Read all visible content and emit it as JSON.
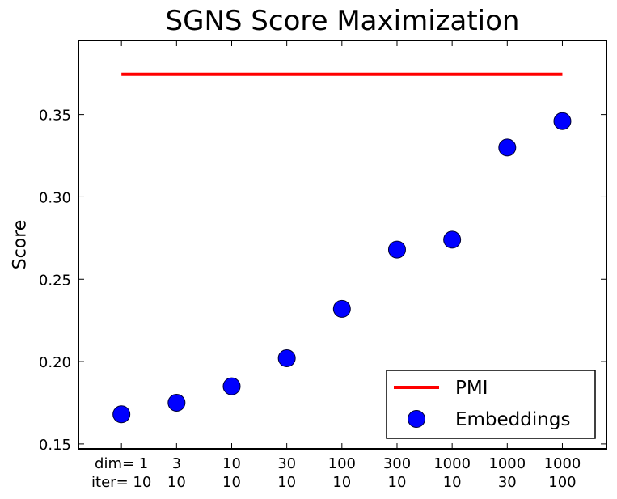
{
  "chart_data": {
    "type": "scatter",
    "title": "SGNS Score Maximization",
    "xlabel": "",
    "ylabel": "Score",
    "x_row_labels": [
      "dim=",
      "iter="
    ],
    "categories": [
      {
        "dim": "1",
        "iter": "10"
      },
      {
        "dim": "3",
        "iter": "10"
      },
      {
        "dim": "10",
        "iter": "10"
      },
      {
        "dim": "30",
        "iter": "10"
      },
      {
        "dim": "100",
        "iter": "10"
      },
      {
        "dim": "300",
        "iter": "10"
      },
      {
        "dim": "1000",
        "iter": "10"
      },
      {
        "dim": "1000",
        "iter": "30"
      },
      {
        "dim": "1000",
        "iter": "100"
      }
    ],
    "series": [
      {
        "name": "PMI",
        "type": "line",
        "color": "#ff0000",
        "values": [
          0.3745,
          0.3745,
          0.3745,
          0.3745,
          0.3745,
          0.3745,
          0.3745,
          0.3745,
          0.3745
        ]
      },
      {
        "name": "Embeddings",
        "type": "scatter",
        "color": "#0000ff",
        "values": [
          0.168,
          0.175,
          0.185,
          0.202,
          0.232,
          0.268,
          0.274,
          0.33,
          0.346
        ]
      }
    ],
    "yticks": [
      0.15,
      0.2,
      0.25,
      0.3,
      0.35
    ],
    "ytick_labels": [
      "0.15",
      "0.20",
      "0.25",
      "0.30",
      "0.35"
    ],
    "ylim": [
      0.147,
      0.395
    ],
    "xlim": [
      -0.78,
      8.8
    ],
    "grid": false,
    "legend_position": "lower right"
  },
  "legend": {
    "items": [
      {
        "label": "PMI",
        "marker": "line",
        "color": "#ff0000"
      },
      {
        "label": "Embeddings",
        "marker": "circle",
        "color": "#0000ff"
      }
    ]
  }
}
